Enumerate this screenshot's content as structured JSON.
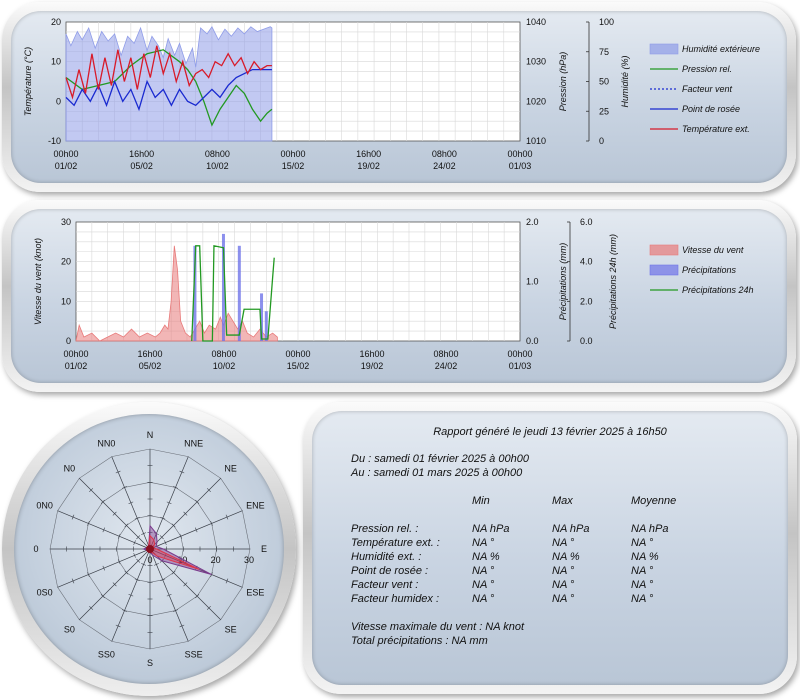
{
  "chart_data": [
    {
      "type": "line",
      "title": "",
      "x_tick_labels": [
        [
          "00h00",
          "01/02"
        ],
        [
          "16h00",
          "05/02"
        ],
        [
          "08h00",
          "10/02"
        ],
        [
          "00h00",
          "15/02"
        ],
        [
          "16h00",
          "19/02"
        ],
        [
          "08h00",
          "24/02"
        ],
        [
          "00h00",
          "01/03"
        ]
      ],
      "axes": {
        "left": {
          "label": "Température (°C)",
          "ylim": [
            -10,
            20
          ],
          "ticks": [
            "20",
            "10",
            "0",
            "-10"
          ]
        },
        "right1": {
          "label": "Pression (hPa)",
          "ylim": [
            1010,
            1040
          ],
          "ticks": [
            "1040",
            "1030",
            "1020",
            "1010"
          ]
        },
        "right2": {
          "label": "Humidité (%)",
          "ylim": [
            0,
            100
          ],
          "ticks": [
            "100",
            "75",
            "50",
            "25",
            "0"
          ]
        }
      },
      "legend_position": "right",
      "series": [
        {
          "name": "Humidité extérieure",
          "kind": "area",
          "axis": "right2",
          "color": "#8f9ce8",
          "values": [
            [
              0,
              90
            ],
            [
              0.3,
              80
            ],
            [
              0.7,
              92
            ],
            [
              1,
              85
            ],
            [
              1.4,
              95
            ],
            [
              1.8,
              78
            ],
            [
              2.2,
              92
            ],
            [
              2.6,
              84
            ],
            [
              3,
              90
            ],
            [
              3.4,
              72
            ],
            [
              3.8,
              88
            ],
            [
              4.2,
              82
            ],
            [
              4.6,
              95
            ],
            [
              5,
              76
            ],
            [
              5.3,
              88
            ],
            [
              5.7,
              80
            ],
            [
              6,
              70
            ],
            [
              6.3,
              86
            ],
            [
              6.7,
              72
            ],
            [
              7,
              82
            ],
            [
              7.4,
              65
            ],
            [
              7.8,
              78
            ],
            [
              8,
              62
            ],
            [
              8.3,
              95
            ],
            [
              8.7,
              90
            ],
            [
              9,
              96
            ],
            [
              9.4,
              85
            ],
            [
              9.8,
              94
            ],
            [
              10.2,
              88
            ],
            [
              10.6,
              95
            ],
            [
              11,
              90
            ],
            [
              11.4,
              96
            ],
            [
              11.8,
              92
            ],
            [
              12.2,
              94
            ],
            [
              12.6,
              96
            ],
            [
              12.7,
              95
            ]
          ]
        },
        {
          "name": "Pression rel.",
          "kind": "line",
          "axis": "right1",
          "color": "#229922",
          "values": [
            [
              0,
              1026
            ],
            [
              1,
              1023
            ],
            [
              2,
              1024
            ],
            [
              3,
              1025
            ],
            [
              4,
              1029
            ],
            [
              5,
              1032
            ],
            [
              6,
              1033
            ],
            [
              7,
              1030
            ],
            [
              7.5,
              1028
            ],
            [
              8,
              1025
            ],
            [
              8.5,
              1020
            ],
            [
              9,
              1014
            ],
            [
              9.5,
              1018
            ],
            [
              10,
              1021
            ],
            [
              10.5,
              1024
            ],
            [
              11,
              1022
            ],
            [
              11.5,
              1018
            ],
            [
              12,
              1015
            ],
            [
              12.4,
              1017
            ],
            [
              12.7,
              1018
            ]
          ]
        },
        {
          "name": "Facteur vent",
          "kind": "dotted",
          "axis": "left",
          "color": "#1a2ad0",
          "values": []
        },
        {
          "name": "Point de rosée",
          "kind": "line",
          "axis": "left",
          "color": "#1a2ad0",
          "values": [
            [
              0,
              1
            ],
            [
              0.5,
              -1
            ],
            [
              1,
              3
            ],
            [
              1.5,
              0
            ],
            [
              2,
              4
            ],
            [
              2.5,
              -1
            ],
            [
              3,
              5
            ],
            [
              3.5,
              0
            ],
            [
              4,
              3
            ],
            [
              4.5,
              -2
            ],
            [
              5,
              5
            ],
            [
              5.5,
              1
            ],
            [
              6,
              3
            ],
            [
              6.5,
              -1
            ],
            [
              7,
              3
            ],
            [
              7.5,
              0
            ],
            [
              8,
              -1
            ],
            [
              8.5,
              1
            ],
            [
              9,
              3
            ],
            [
              9.5,
              1
            ],
            [
              10,
              4
            ],
            [
              10.5,
              6
            ],
            [
              11,
              7
            ],
            [
              11.5,
              8
            ],
            [
              12,
              8
            ],
            [
              12.4,
              8
            ],
            [
              12.7,
              8
            ]
          ]
        },
        {
          "name": "Température ext.",
          "kind": "line",
          "axis": "left",
          "color": "#d81a2a",
          "values": [
            [
              0,
              6
            ],
            [
              0.4,
              1
            ],
            [
              0.8,
              8
            ],
            [
              1.2,
              2
            ],
            [
              1.6,
              12
            ],
            [
              2,
              3
            ],
            [
              2.4,
              11
            ],
            [
              2.8,
              4
            ],
            [
              3.2,
              13
            ],
            [
              3.6,
              5
            ],
            [
              4,
              11
            ],
            [
              4.4,
              3
            ],
            [
              4.8,
              12
            ],
            [
              5.2,
              6
            ],
            [
              5.6,
              14
            ],
            [
              6,
              7
            ],
            [
              6.4,
              12
            ],
            [
              6.8,
              5
            ],
            [
              7.2,
              10
            ],
            [
              7.6,
              4
            ],
            [
              8,
              7
            ],
            [
              8.4,
              8
            ],
            [
              8.8,
              6
            ],
            [
              9.2,
              10
            ],
            [
              9.6,
              9
            ],
            [
              10,
              12
            ],
            [
              10.4,
              9
            ],
            [
              10.8,
              11
            ],
            [
              11.2,
              7
            ],
            [
              11.6,
              10
            ],
            [
              12,
              8
            ],
            [
              12.4,
              9
            ],
            [
              12.7,
              9
            ]
          ]
        }
      ]
    },
    {
      "type": "line",
      "title": "",
      "x_tick_labels": [
        [
          "00h00",
          "01/02"
        ],
        [
          "16h00",
          "05/02"
        ],
        [
          "08h00",
          "10/02"
        ],
        [
          "00h00",
          "15/02"
        ],
        [
          "16h00",
          "19/02"
        ],
        [
          "08h00",
          "24/02"
        ],
        [
          "00h00",
          "01/03"
        ]
      ],
      "axes": {
        "left": {
          "label": "Vitesse du vent (knot)",
          "ylim": [
            0,
            30
          ],
          "ticks": [
            "30",
            "20",
            "10",
            "0"
          ]
        },
        "right1": {
          "label": "Précipitations (mm)",
          "ylim": [
            0,
            2.0
          ],
          "ticks": [
            "2.0",
            "1.0",
            "0.0"
          ]
        },
        "right2": {
          "label": "Précipitations 24h (mm)",
          "ylim": [
            0,
            6.0
          ],
          "ticks": [
            "6.0",
            "4.0",
            "2.0",
            "0.0"
          ]
        }
      },
      "legend_position": "right",
      "series": [
        {
          "name": "Vitesse du vent",
          "kind": "area",
          "axis": "left",
          "color": "#e87a7a",
          "values": [
            [
              0,
              0
            ],
            [
              0.2,
              4
            ],
            [
              0.5,
              1
            ],
            [
              1,
              2
            ],
            [
              1.5,
              0
            ],
            [
              2,
              1
            ],
            [
              2.5,
              2
            ],
            [
              3,
              1
            ],
            [
              3.5,
              3
            ],
            [
              4,
              1
            ],
            [
              4.5,
              2
            ],
            [
              5,
              1
            ],
            [
              5.3,
              2
            ],
            [
              5.6,
              4
            ],
            [
              5.8,
              3
            ],
            [
              6,
              10
            ],
            [
              6.2,
              24
            ],
            [
              6.4,
              18
            ],
            [
              6.6,
              5
            ],
            [
              6.9,
              2
            ],
            [
              7.2,
              1
            ],
            [
              7.5,
              3
            ],
            [
              7.8,
              5
            ],
            [
              8.1,
              2
            ],
            [
              8.4,
              4
            ],
            [
              8.8,
              3
            ],
            [
              9.1,
              6
            ],
            [
              9.3,
              4
            ],
            [
              9.6,
              7
            ],
            [
              9.9,
              5
            ],
            [
              10.2,
              3
            ],
            [
              10.5,
              5
            ],
            [
              10.8,
              2
            ],
            [
              11.2,
              1
            ],
            [
              11.6,
              3
            ],
            [
              12,
              1
            ],
            [
              12.4,
              2
            ],
            [
              12.7,
              1
            ]
          ]
        },
        {
          "name": "Précipitations",
          "kind": "bar",
          "axis": "right1",
          "color": "#6f74e8",
          "values": [
            [
              7.5,
              1.6
            ],
            [
              9.3,
              1.8
            ],
            [
              10.3,
              1.6
            ],
            [
              11.7,
              0.8
            ],
            [
              12.0,
              0.5
            ]
          ]
        },
        {
          "name": "Précipitations 24h",
          "kind": "line",
          "axis": "right2",
          "color": "#229922",
          "values": [
            [
              7.3,
              0
            ],
            [
              7.55,
              4.8
            ],
            [
              7.8,
              4.8
            ],
            [
              8.0,
              0
            ],
            [
              8.6,
              0
            ],
            [
              8.7,
              4.8
            ],
            [
              9.3,
              4.7
            ],
            [
              9.5,
              0.3
            ],
            [
              10.3,
              0.3
            ],
            [
              10.6,
              1.6
            ],
            [
              11.6,
              1.6
            ],
            [
              11.7,
              0.1
            ],
            [
              12.1,
              0.1
            ],
            [
              12.4,
              3.2
            ],
            [
              12.5,
              4.2
            ]
          ]
        }
      ]
    },
    {
      "type": "radar",
      "title": "",
      "directions": [
        "N",
        "NNE",
        "NE",
        "ENE",
        "E",
        "ESE",
        "SE",
        "SSE",
        "S",
        "SS0",
        "S0",
        "0S0",
        "0",
        "0N0",
        "N0",
        "NN0"
      ],
      "scale_ticks": [
        "10",
        "20",
        "30"
      ],
      "rmax": 30,
      "series": [
        {
          "name": "",
          "color": "#7a3a8c",
          "values": [
            7,
            5,
            3,
            2,
            4,
            20,
            5,
            2,
            1,
            1,
            1,
            1,
            2,
            1,
            1,
            1
          ]
        },
        {
          "name": "",
          "color": "#e0344a",
          "values": [
            4,
            3,
            2,
            1,
            2,
            16,
            3,
            1,
            1,
            1,
            0,
            1,
            1,
            1,
            1,
            1
          ]
        }
      ]
    }
  ],
  "legend1": [
    {
      "name": "Humidité extérieure",
      "kind": "area",
      "color": "#8f9ce8"
    },
    {
      "name": "Pression rel.",
      "kind": "line",
      "color": "#229922"
    },
    {
      "name": "Facteur vent",
      "kind": "dotted",
      "color": "#1a2ad0"
    },
    {
      "name": "Point de rosée",
      "kind": "line",
      "color": "#1a2ad0"
    },
    {
      "name": "Température ext.",
      "kind": "line",
      "color": "#d81a2a"
    }
  ],
  "legend2": [
    {
      "name": "Vitesse du vent",
      "kind": "area",
      "color": "#e87a7a"
    },
    {
      "name": "Précipitations",
      "kind": "area",
      "color": "#6f74e8"
    },
    {
      "name": "Précipitations 24h",
      "kind": "line",
      "color": "#229922"
    }
  ],
  "report": {
    "title": "Rapport généré le jeudi 13 février 2025 à 16h50",
    "from": "Du : samedi 01 février 2025 à 00h00",
    "to": "Au : samedi 01 mars 2025 à 00h00",
    "col_min": "Min",
    "col_max": "Max",
    "col_avg": "Moyenne",
    "rows": [
      {
        "label": "Pression rel. :",
        "min": "NA hPa",
        "max": "NA hPa",
        "avg": "NA hPa"
      },
      {
        "label": "Température ext. :",
        "min": "NA °",
        "max": "NA °",
        "avg": "NA °"
      },
      {
        "label": "Humidité ext. :",
        "min": "NA %",
        "max": "NA %",
        "avg": "NA %"
      },
      {
        "label": "Point de rosée :",
        "min": "NA °",
        "max": "NA °",
        "avg": "NA °"
      },
      {
        "label": "Facteur vent :",
        "min": "NA °",
        "max": "NA °",
        "avg": "NA °"
      },
      {
        "label": "Facteur humidex :",
        "min": "NA °",
        "max": "NA °",
        "avg": "NA °"
      }
    ],
    "max_wind": "Vitesse maximale du vent : NA knot",
    "total_rain": "Total précipitations : NA mm"
  }
}
